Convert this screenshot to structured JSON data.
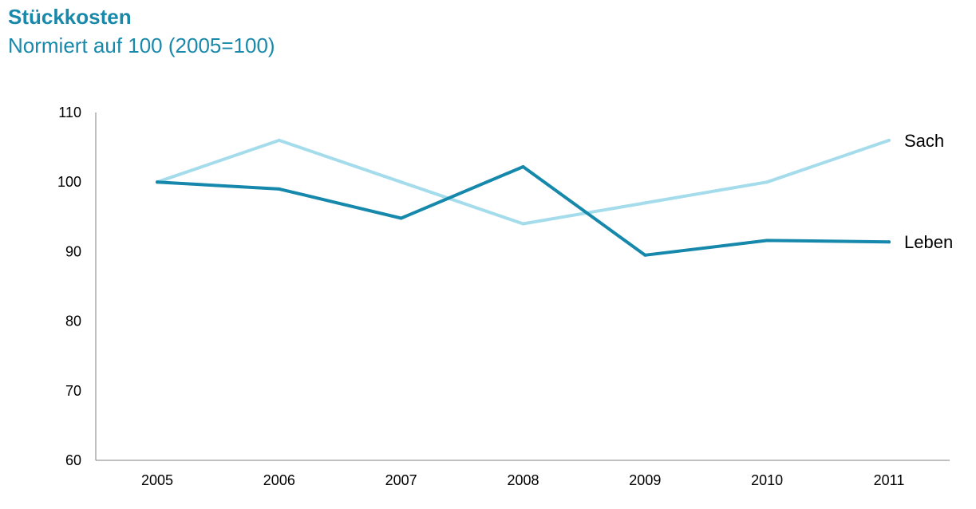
{
  "chart_data": {
    "type": "line",
    "title": "Stückkosten",
    "subtitle": "Normiert auf 100 (2005=100)",
    "xlabel": "",
    "ylabel": "",
    "categories": [
      "2005",
      "2006",
      "2007",
      "2008",
      "2009",
      "2010",
      "2011"
    ],
    "ylim": [
      60,
      110
    ],
    "yticks": [
      60,
      70,
      80,
      90,
      100,
      110
    ],
    "grid": false,
    "legend": "inline-right",
    "series": [
      {
        "name": "Sach",
        "color": "#a4dcec",
        "values": [
          100,
          106,
          100,
          94,
          97,
          100,
          106
        ]
      },
      {
        "name": "Leben",
        "color": "#1588ab",
        "values": [
          100,
          99,
          94.8,
          102.2,
          89.5,
          91.6,
          91.4
        ]
      }
    ]
  }
}
